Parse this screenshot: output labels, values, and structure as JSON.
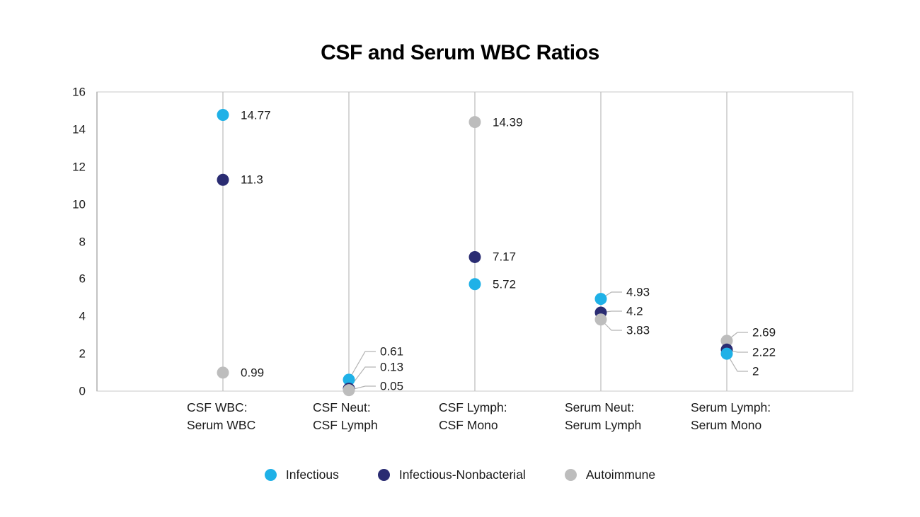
{
  "chart_data": {
    "type": "scatter",
    "title": "CSF and Serum WBC Ratios",
    "categories": [
      [
        "CSF WBC:",
        "Serum WBC"
      ],
      [
        "CSF Neut:",
        "CSF Lymph"
      ],
      [
        "CSF Lymph:",
        "CSF Mono"
      ],
      [
        "Serum Neut:",
        "Serum Lymph"
      ],
      [
        "Serum Lymph:",
        "Serum Mono"
      ]
    ],
    "series": [
      {
        "name": "Infectious",
        "color": "#1FB1E7",
        "values": [
          14.77,
          0.61,
          5.72,
          4.93,
          2
        ],
        "labels": [
          "14.77",
          "0.61",
          "5.72",
          "4.93",
          "2"
        ]
      },
      {
        "name": "Infectious-Nonbacterial",
        "color": "#2A2C72",
        "values": [
          11.3,
          0.13,
          7.17,
          4.2,
          2.22
        ],
        "labels": [
          "11.3",
          "0.13",
          "7.17",
          "4.2",
          "2.22"
        ]
      },
      {
        "name": "Autoimmune",
        "color": "#BDBDBD",
        "values": [
          0.99,
          0.05,
          14.39,
          3.83,
          2.69
        ],
        "labels": [
          "0.99",
          "0.05",
          "14.39",
          "3.83",
          "2.69"
        ]
      }
    ],
    "ylim": [
      0,
      16
    ],
    "yticks": [
      "0",
      "2",
      "4",
      "6",
      "8",
      "10",
      "12",
      "14",
      "16"
    ],
    "grid": "vertical-only",
    "legend_position": "bottom",
    "colors": {
      "grid": "#BFBFBF",
      "axis": "#B3B3B3",
      "border": "#DCDCDC",
      "leader_line": "#B3B3B3",
      "text": "#1A1A1A"
    }
  }
}
